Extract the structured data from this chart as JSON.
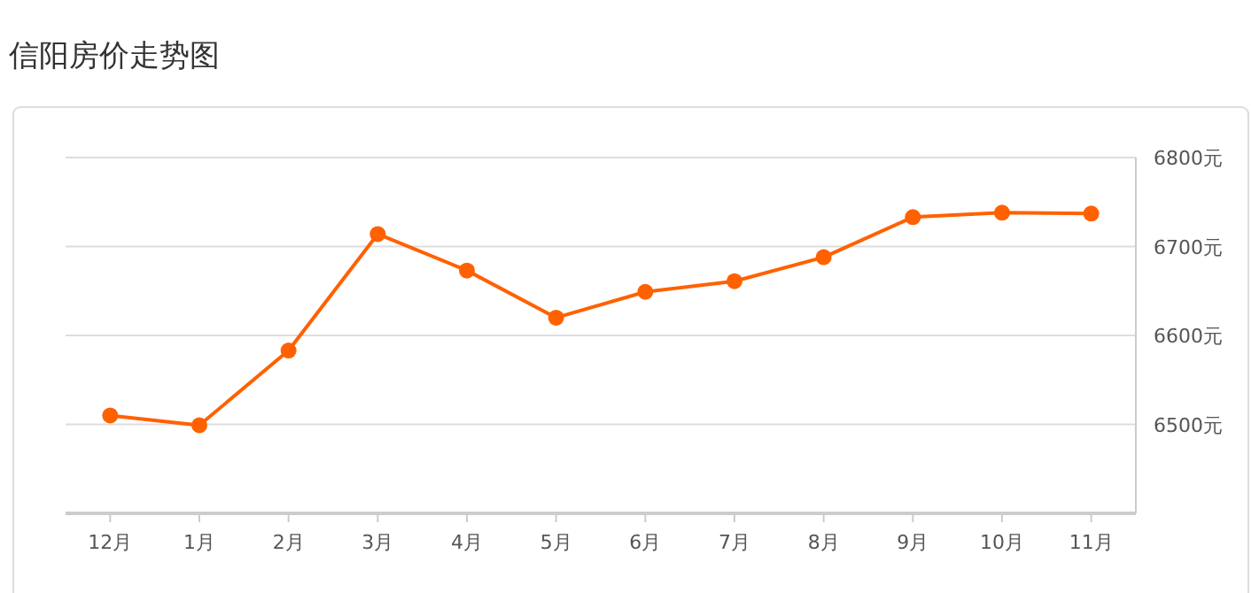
{
  "chart_data": {
    "type": "line",
    "title": "信阳房价走势图",
    "categories": [
      "12月",
      "1月",
      "2月",
      "3月",
      "4月",
      "5月",
      "6月",
      "7月",
      "8月",
      "9月",
      "10月",
      "11月"
    ],
    "series": [
      {
        "color": "#ff6100",
        "values": [
          6510,
          6499,
          6583,
          6714,
          6673,
          6620,
          6649,
          6661,
          6688,
          6733,
          6738,
          6737
        ]
      }
    ],
    "ylim": [
      6400,
      6800
    ],
    "yticks": [
      {
        "value": 6500,
        "label": "6500元"
      },
      {
        "value": 6600,
        "label": "6600元"
      },
      {
        "value": 6700,
        "label": "6700元"
      },
      {
        "value": 6800,
        "label": "6800元"
      }
    ],
    "grid": "y",
    "marker": "circle",
    "line_style": "solid"
  }
}
